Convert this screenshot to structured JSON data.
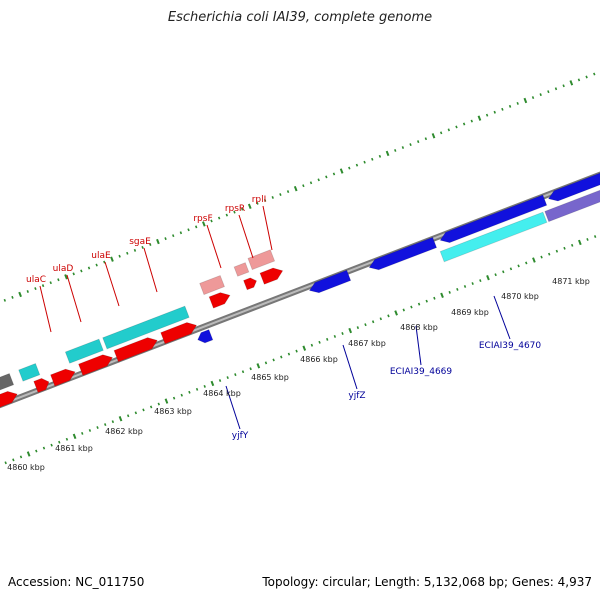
{
  "title": "Escherichia coli IAI39, complete genome",
  "footer": {
    "accession": "Accession: NC_011750",
    "summary": "Topology: circular; Length: 5,132,068 bp; Genes: 4,937"
  },
  "colors": {
    "backbone": "#8a8a8a",
    "tick": "#2e8b2e",
    "gene_red": "#ee0000",
    "gene_pink": "#ee9999",
    "gene_cyan": "#22cccc",
    "gene_blue": "#1111dd",
    "gene_cyan_light": "#44eeee",
    "gene_purple": "#7766cc",
    "gene_gray": "#666666"
  },
  "scale_labels": [
    "4860 kbp",
    "4861 kbp",
    "4862 kbp",
    "4863 kbp",
    "4864 kbp",
    "4865 kbp",
    "4866 kbp",
    "4867 kbp",
    "4868 kbp",
    "4869 kbp",
    "4870 kbp",
    "4871 kbp"
  ],
  "gene_labels_top": [
    "ulaC",
    "ulaD",
    "ulaE",
    "sgaE",
    "rpsF",
    "rpsR",
    "rplI"
  ],
  "gene_labels_bottom": [
    "yjfY",
    "yjfZ",
    "ECIAI39_4669",
    "ECIAI39_4670"
  ]
}
